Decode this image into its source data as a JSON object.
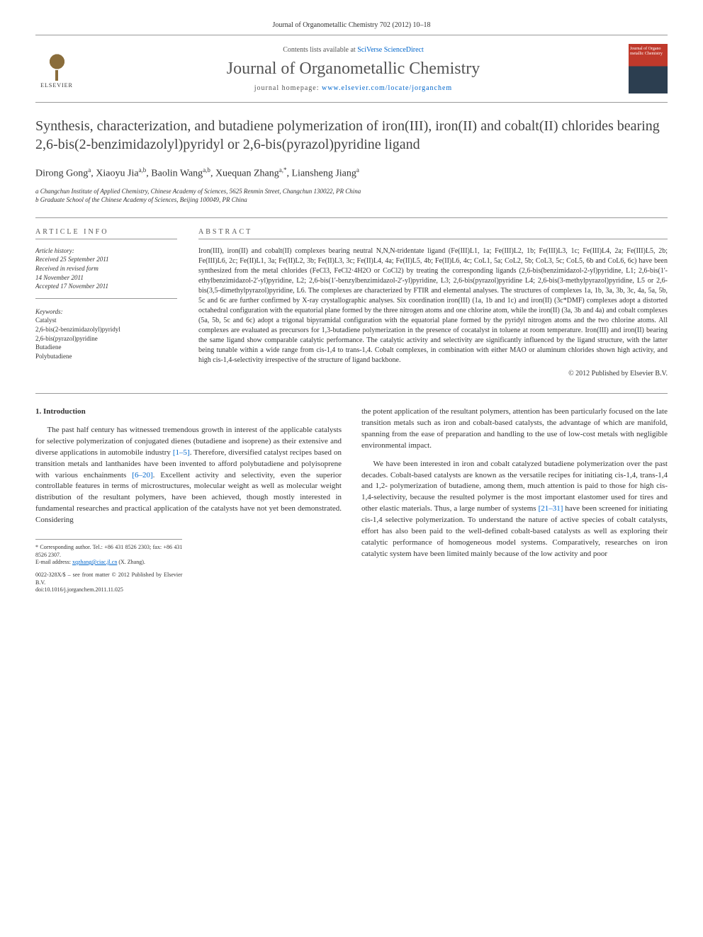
{
  "journal_ref": "Journal of Organometallic Chemistry 702 (2012) 10–18",
  "header": {
    "contents_prefix": "Contents lists available at ",
    "contents_link": "SciVerse ScienceDirect",
    "journal_name": "Journal of Organometallic Chemistry",
    "homepage_prefix": "journal homepage: ",
    "homepage_link": "www.elsevier.com/locate/jorganchem",
    "elsevier_label": "ELSEVIER",
    "cover_text": "Journal of Organo metallic Chemistry"
  },
  "title": "Synthesis, characterization, and butadiene polymerization of iron(III), iron(II) and cobalt(II) chlorides bearing 2,6-bis(2-benzimidazolyl)pyridyl or 2,6-bis(pyrazol)pyridine ligand",
  "authors_html": "Dirong Gong<sup>a</sup>, Xiaoyu Jia<sup>a,b</sup>, Baolin Wang<sup>a,b</sup>, Xuequan Zhang<sup>a,*</sup>, Liansheng Jiang<sup>a</sup>",
  "affiliations": [
    "a Changchun Institute of Applied Chemistry, Chinese Academy of Sciences, 5625 Renmin Street, Changchun 130022, PR China",
    "b Graduate School of the Chinese Academy of Sciences, Beijing 100049, PR China"
  ],
  "article_info": {
    "label": "ARTICLE INFO",
    "history_label": "Article history:",
    "history": [
      "Received 25 September 2011",
      "Received in revised form",
      "14 November 2011",
      "Accepted 17 November 2011"
    ],
    "keywords_label": "Keywords:",
    "keywords": [
      "Catalyst",
      "2,6-bis(2-benzimidazolyl)pyridyl",
      "2,6-bis(pyrazol)pyridine",
      "Butadiene",
      "Polybutadiene"
    ]
  },
  "abstract": {
    "label": "ABSTRACT",
    "text": "Iron(III), iron(II) and cobalt(II) complexes bearing neutral N,N,N-tridentate ligand (Fe(III)L1, 1a; Fe(III)L2, 1b; Fe(III)L3, 1c; Fe(III)L4, 2a; Fe(III)L5, 2b; Fe(III)L6, 2c; Fe(II)L1, 3a; Fe(II)L2, 3b; Fe(II)L3, 3c; Fe(II)L4, 4a; Fe(II)L5, 4b; Fe(II)L6, 4c; CoL1, 5a; CoL2, 5b; CoL3, 5c; CoL5, 6b and CoL6, 6c) have been synthesized from the metal chlorides (FeCl3, FeCl2·4H2O or CoCl2) by treating the corresponding ligands (2,6-bis(benzimidazol-2-yl)pyridine, L1; 2,6-bis(1'-ethylbenzimidazol-2'-yl)pyridine, L2; 2,6-bis(1'-benzylbenzimidazol-2'-yl)pyridine, L3; 2,6-bis(pyrazol)pyridine L4; 2,6-bis(3-methylpyrazol)pyridine, L5 or 2,6-bis(3,5-dimethylpyrazol)pyridine, L6. The complexes are characterized by FTIR and elemental analyses. The structures of complexes 1a, 1b, 3a, 3b, 3c, 4a, 5a, 5b, 5c and 6c are further confirmed by X-ray crystallographic analyses. Six coordination iron(III) (1a, 1b and 1c) and iron(II) (3c*DMF) complexes adopt a distorted octahedral configuration with the equatorial plane formed by the three nitrogen atoms and one chlorine atom, while the iron(II) (3a, 3b and 4a) and cobalt complexes (5a, 5b, 5c and 6c) adopt a trigonal bipyramidal configuration with the equatorial plane formed by the pyridyl nitrogen atoms and the two chlorine atoms. All complexes are evaluated as precursors for 1,3-butadiene polymerization in the presence of cocatalyst in toluene at room temperature. Iron(III) and iron(II) bearing the same ligand show comparable catalytic performance. The catalytic activity and selectivity are significantly influenced by the ligand structure, with the latter being tunable within a wide range from cis-1,4 to trans-1,4. Cobalt complexes, in combination with either MAO or aluminum chlorides shown high activity, and high cis-1,4-selectivity irrespective of the structure of ligand backbone.",
    "copyright": "© 2012 Published by Elsevier B.V."
  },
  "body": {
    "heading": "1. Introduction",
    "col1_p1": "The past half century has witnessed tremendous growth in interest of the applicable catalysts for selective polymerization of conjugated dienes (butadiene and isoprene) as their extensive and diverse applications in automobile industry [1–5]. Therefore, diversified catalyst recipes based on transition metals and lanthanides have been invented to afford polybutadiene and polyisoprene with various enchainments [6–20]. Excellent activity and selectivity, even the superior controllable features in terms of microstructures, molecular weight as well as molecular weight distribution of the resultant polymers, have been achieved, though mostly interested in fundamental researches and practical application of the catalysts have not yet been demonstrated. Considering",
    "col2_p1": "the potent application of the resultant polymers, attention has been particularly focused on the late transition metals such as iron and cobalt-based catalysts, the advantage of which are manifold, spanning from the ease of preparation and handling to the use of low-cost metals with negligible environmental impact.",
    "col2_p2": "We have been interested in iron and cobalt catalyzed butadiene polymerization over the past decades. Cobalt-based catalysts are known as the versatile recipes for initiating cis-1,4, trans-1,4 and 1,2- polymerization of butadiene, among them, much attention is paid to those for high cis-1,4-selectivity, because the resulted polymer is the most important elastomer used for tires and other elastic materials. Thus, a large number of systems [21–31] have been screened for initiating cis-1,4 selective polymerization. To understand the nature of active species of cobalt catalysts, effort has also been paid to the well-defined cobalt-based catalysts as well as exploring their catalytic performance of homogeneous model systems. Comparatively, researches on iron catalytic system have been limited mainly because of the low activity and poor"
  },
  "footer": {
    "corresponding": "* Corresponding author. Tel.: +86 431 8526 2303; fax: +86 431 8526 2307.",
    "email_label": "E-mail address: ",
    "email": "xqzhang@ciac.jl.cn",
    "email_suffix": " (X. Zhang).",
    "issn": "0022-328X/$ – see front matter © 2012 Published by Elsevier B.V.",
    "doi": "doi:10.1016/j.jorganchem.2011.11.025"
  }
}
